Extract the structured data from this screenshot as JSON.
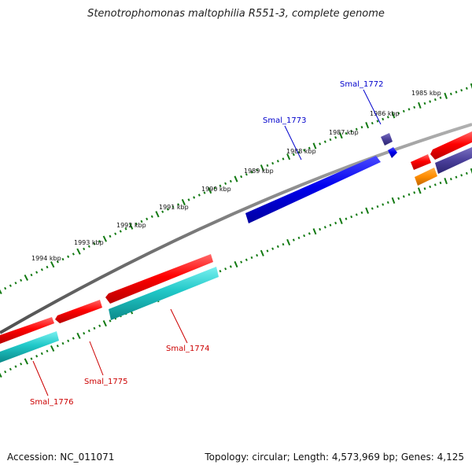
{
  "title": "Stenotrophomonas maltophilia R551-3, complete genome",
  "footer": {
    "accession": "Accession: NC_011071",
    "stats": "Topology: circular; Length: 4,573,969 bp; Genes: 4,125"
  },
  "colors": {
    "backbone": "#808080",
    "tick": "#137a13",
    "red_gene": "#ff0000",
    "cyan_gene": "#20c8c8",
    "blue_gene": "#0000ee",
    "navy_gene": "#4a3f9a",
    "orange_gene": "#ff8c00",
    "label_red": "#cc0000",
    "label_blue": "#0000cc"
  },
  "kbp_labels": [
    "1985 kbp",
    "1986 kbp",
    "1987 kbp",
    "1988 kbp",
    "1989 kbp",
    "1990 kbp",
    "1991 kbp",
    "1992 kbp",
    "1993 kbp",
    "1994 kbp"
  ],
  "gene_labels": [
    "Smal_1772",
    "Smal_1773",
    "Smal_1774",
    "Smal_1775",
    "Smal_1776"
  ]
}
